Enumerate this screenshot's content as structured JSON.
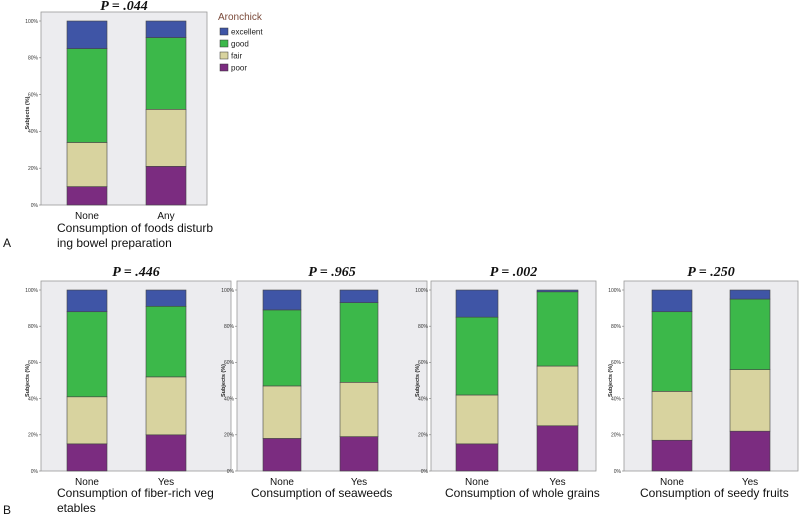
{
  "panel_letters": [
    "A",
    "B"
  ],
  "colors": {
    "excellent": "#3f55a6",
    "good": "#3cb84a",
    "fair": "#d8d39f",
    "poor": "#7b2c80",
    "plot_bg": "#ececef"
  },
  "legend": {
    "title": "Aronchick",
    "items": [
      {
        "label": "excellent",
        "key": "excellent"
      },
      {
        "label": "good",
        "key": "good"
      },
      {
        "label": "fair",
        "key": "fair"
      },
      {
        "label": "poor",
        "key": "poor"
      }
    ]
  },
  "chart_data": [
    {
      "type": "bar",
      "stacked": true,
      "panel": "A",
      "p_value": "P = .044",
      "ylabel": "Subjects (%)",
      "ylim": [
        0,
        100
      ],
      "yticks": [
        "0%",
        "20%",
        "40%",
        "60%",
        "80%",
        "100%"
      ],
      "xlabel_lines": [
        "Consumption of foods disturb",
        "ing bowel preparation"
      ],
      "categories": [
        "None",
        "Any"
      ],
      "series": [
        {
          "name": "poor",
          "values": [
            10,
            21
          ]
        },
        {
          "name": "fair",
          "values": [
            24,
            31
          ]
        },
        {
          "name": "good",
          "values": [
            51,
            39
          ]
        },
        {
          "name": "excellent",
          "values": [
            15,
            9
          ]
        }
      ]
    },
    {
      "type": "bar",
      "stacked": true,
      "panel": "B",
      "p_value": "P = .446",
      "ylabel": "Subjects (%)",
      "ylim": [
        0,
        100
      ],
      "yticks": [
        "0%",
        "20%",
        "40%",
        "60%",
        "80%",
        "100%"
      ],
      "xlabel_lines": [
        "Consumption of fiber-rich veg",
        "etables"
      ],
      "categories": [
        "None",
        "Yes"
      ],
      "series": [
        {
          "name": "poor",
          "values": [
            15,
            20
          ]
        },
        {
          "name": "fair",
          "values": [
            26,
            32
          ]
        },
        {
          "name": "good",
          "values": [
            47,
            39
          ]
        },
        {
          "name": "excellent",
          "values": [
            12,
            9
          ]
        }
      ]
    },
    {
      "type": "bar",
      "stacked": true,
      "panel": "B",
      "p_value": "P = .965",
      "ylabel": "Subjects (%)",
      "ylim": [
        0,
        100
      ],
      "yticks": [
        "0%",
        "20%",
        "40%",
        "60%",
        "80%",
        "100%"
      ],
      "xlabel_lines": [
        "Consumption of seaweeds"
      ],
      "categories": [
        "None",
        "Yes"
      ],
      "series": [
        {
          "name": "poor",
          "values": [
            18,
            19
          ]
        },
        {
          "name": "fair",
          "values": [
            29,
            30
          ]
        },
        {
          "name": "good",
          "values": [
            42,
            44
          ]
        },
        {
          "name": "excellent",
          "values": [
            11,
            7
          ]
        }
      ]
    },
    {
      "type": "bar",
      "stacked": true,
      "panel": "B",
      "p_value": "P = .002",
      "ylabel": "Subjects (%)",
      "ylim": [
        0,
        100
      ],
      "yticks": [
        "0%",
        "20%",
        "40%",
        "60%",
        "80%",
        "100%"
      ],
      "xlabel_lines": [
        "Consumption of whole grains"
      ],
      "categories": [
        "None",
        "Yes"
      ],
      "series": [
        {
          "name": "poor",
          "values": [
            15,
            25
          ]
        },
        {
          "name": "fair",
          "values": [
            27,
            33
          ]
        },
        {
          "name": "good",
          "values": [
            43,
            41
          ]
        },
        {
          "name": "excellent",
          "values": [
            15,
            1
          ]
        }
      ]
    },
    {
      "type": "bar",
      "stacked": true,
      "panel": "B",
      "p_value": "P = .250",
      "ylabel": "Subjects (%)",
      "ylim": [
        0,
        100
      ],
      "yticks": [
        "0%",
        "20%",
        "40%",
        "60%",
        "80%",
        "100%"
      ],
      "xlabel_lines": [
        "Consumption of seedy fruits"
      ],
      "categories": [
        "None",
        "Yes"
      ],
      "series": [
        {
          "name": "poor",
          "values": [
            17,
            22
          ]
        },
        {
          "name": "fair",
          "values": [
            27,
            34
          ]
        },
        {
          "name": "good",
          "values": [
            44,
            39
          ]
        },
        {
          "name": "excellent",
          "values": [
            12,
            5
          ]
        }
      ]
    }
  ]
}
